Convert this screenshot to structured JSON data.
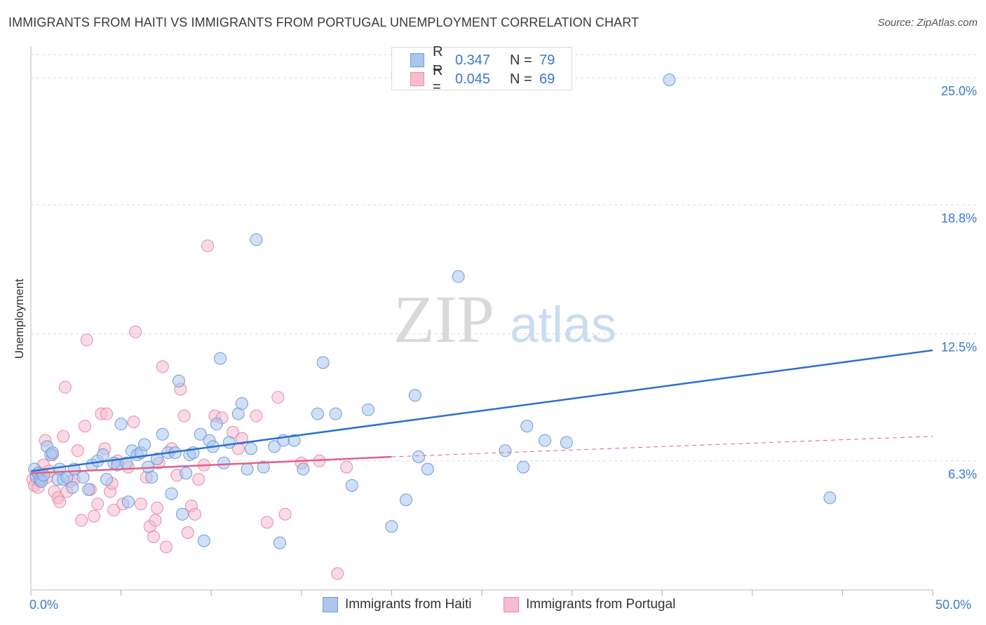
{
  "title": "IMMIGRANTS FROM HAITI VS IMMIGRANTS FROM PORTUGAL UNEMPLOYMENT CORRELATION CHART",
  "source": "Source: ZipAtlas.com",
  "watermark": {
    "zip": "ZIP",
    "atlas": "atlas"
  },
  "legend_top": [
    {
      "r_label": "R =",
      "r_value": "0.347",
      "n_label": "N =",
      "n_value": "79"
    },
    {
      "r_label": "R =",
      "r_value": "0.045",
      "n_label": "N =",
      "n_value": "69"
    }
  ],
  "legend_bottom": [
    "Immigrants from Haiti",
    "Immigrants from Portugal"
  ],
  "colors": {
    "haiti_fill": "#aac6ee",
    "haiti_stroke": "#6f9ad8",
    "haiti_line": "#2a6fd0",
    "portugal_fill": "#f6bcd0",
    "portugal_stroke": "#e88aaa",
    "portugal_line": "#e0608a",
    "axis_text": "#3a78d0",
    "grid": "#dcdcdc"
  },
  "chart_data": {
    "type": "scatter",
    "title": "IMMIGRANTS FROM HAITI VS IMMIGRANTS FROM PORTUGAL UNEMPLOYMENT CORRELATION CHART",
    "xlabel": "",
    "ylabel": "Unemployment",
    "xlim": [
      0,
      50
    ],
    "ylim": [
      0,
      26.2
    ],
    "x_tick_labels": [
      "0.0%",
      "50.0%"
    ],
    "y_ticks": [
      6.3,
      12.5,
      18.8,
      25.0
    ],
    "y_tick_labels": [
      "6.3%",
      "12.5%",
      "18.8%",
      "25.0%"
    ],
    "grid": true,
    "series": [
      {
        "name": "Immigrants from Haiti",
        "r": 0.347,
        "n": 79,
        "trend": {
          "x": [
            0,
            50
          ],
          "y": [
            5.8,
            11.7
          ],
          "style": "solid"
        },
        "points": [
          [
            0.2,
            5.9
          ],
          [
            0.3,
            5.5
          ],
          [
            0.4,
            5.7
          ],
          [
            0.5,
            5.4
          ],
          [
            0.6,
            5.3
          ],
          [
            0.7,
            5.6
          ],
          [
            0.9,
            7.0
          ],
          [
            1.1,
            6.6
          ],
          [
            1.2,
            6.7
          ],
          [
            1.5,
            5.4
          ],
          [
            1.6,
            5.9
          ],
          [
            1.8,
            5.4
          ],
          [
            2.0,
            5.5
          ],
          [
            2.3,
            5.0
          ],
          [
            2.4,
            5.9
          ],
          [
            2.9,
            5.5
          ],
          [
            3.2,
            4.9
          ],
          [
            3.4,
            6.1
          ],
          [
            3.7,
            6.3
          ],
          [
            4.0,
            6.6
          ],
          [
            4.2,
            5.4
          ],
          [
            4.6,
            6.2
          ],
          [
            4.8,
            6.1
          ],
          [
            5.0,
            8.1
          ],
          [
            5.3,
            6.2
          ],
          [
            5.4,
            4.3
          ],
          [
            5.6,
            6.8
          ],
          [
            5.9,
            6.6
          ],
          [
            6.1,
            6.7
          ],
          [
            6.3,
            7.1
          ],
          [
            6.5,
            6.0
          ],
          [
            6.7,
            5.5
          ],
          [
            7.0,
            6.4
          ],
          [
            7.3,
            7.6
          ],
          [
            7.6,
            6.7
          ],
          [
            7.8,
            4.7
          ],
          [
            8.0,
            6.7
          ],
          [
            8.2,
            10.2
          ],
          [
            8.4,
            3.7
          ],
          [
            8.6,
            5.7
          ],
          [
            8.8,
            6.6
          ],
          [
            9.0,
            6.7
          ],
          [
            9.4,
            7.6
          ],
          [
            9.6,
            2.4
          ],
          [
            9.9,
            7.3
          ],
          [
            10.1,
            7.0
          ],
          [
            10.3,
            8.1
          ],
          [
            10.5,
            11.3
          ],
          [
            10.7,
            6.2
          ],
          [
            11.0,
            7.2
          ],
          [
            11.5,
            8.6
          ],
          [
            11.7,
            9.1
          ],
          [
            12.0,
            5.9
          ],
          [
            12.2,
            6.9
          ],
          [
            12.5,
            17.1
          ],
          [
            12.9,
            6.0
          ],
          [
            13.5,
            7.0
          ],
          [
            13.8,
            2.3
          ],
          [
            14.0,
            7.3
          ],
          [
            14.6,
            7.3
          ],
          [
            15.1,
            5.9
          ],
          [
            15.9,
            8.6
          ],
          [
            16.2,
            11.1
          ],
          [
            16.9,
            8.6
          ],
          [
            17.8,
            5.1
          ],
          [
            18.7,
            8.8
          ],
          [
            20.0,
            3.1
          ],
          [
            20.8,
            4.4
          ],
          [
            21.3,
            9.5
          ],
          [
            21.5,
            6.5
          ],
          [
            22.0,
            5.9
          ],
          [
            23.7,
            15.3
          ],
          [
            26.3,
            6.8
          ],
          [
            27.3,
            6.0
          ],
          [
            27.5,
            8.0
          ],
          [
            28.5,
            7.3
          ],
          [
            29.7,
            7.2
          ],
          [
            35.4,
            24.9
          ],
          [
            44.3,
            4.5
          ]
        ]
      },
      {
        "name": "Immigrants from Portugal",
        "r": 0.045,
        "n": 69,
        "trend": {
          "x": [
            0,
            20
          ],
          "y": [
            5.7,
            6.5
          ],
          "style": "solid"
        },
        "trend_extension": {
          "x": [
            20,
            50
          ],
          "y": [
            6.5,
            7.5
          ],
          "style": "dashed"
        },
        "points": [
          [
            0.1,
            5.4
          ],
          [
            0.2,
            5.1
          ],
          [
            0.3,
            5.6
          ],
          [
            0.4,
            5.0
          ],
          [
            0.5,
            5.3
          ],
          [
            0.6,
            5.7
          ],
          [
            0.7,
            6.1
          ],
          [
            0.8,
            7.3
          ],
          [
            0.9,
            5.5
          ],
          [
            1.0,
            5.8
          ],
          [
            1.2,
            6.6
          ],
          [
            1.3,
            4.8
          ],
          [
            1.5,
            4.5
          ],
          [
            1.6,
            4.3
          ],
          [
            1.8,
            7.5
          ],
          [
            1.9,
            9.9
          ],
          [
            2.0,
            4.8
          ],
          [
            2.2,
            5.3
          ],
          [
            2.4,
            5.4
          ],
          [
            2.6,
            6.8
          ],
          [
            2.8,
            3.4
          ],
          [
            3.0,
            8.0
          ],
          [
            3.1,
            12.2
          ],
          [
            3.3,
            4.9
          ],
          [
            3.5,
            3.6
          ],
          [
            3.7,
            4.2
          ],
          [
            3.9,
            8.6
          ],
          [
            4.1,
            6.9
          ],
          [
            4.2,
            8.6
          ],
          [
            4.4,
            4.8
          ],
          [
            4.5,
            5.2
          ],
          [
            4.6,
            3.9
          ],
          [
            4.8,
            6.3
          ],
          [
            5.1,
            4.2
          ],
          [
            5.4,
            6.0
          ],
          [
            5.7,
            8.2
          ],
          [
            5.8,
            12.6
          ],
          [
            6.1,
            4.2
          ],
          [
            6.4,
            5.5
          ],
          [
            6.6,
            3.1
          ],
          [
            6.8,
            2.6
          ],
          [
            6.9,
            3.4
          ],
          [
            7.0,
            4.0
          ],
          [
            7.1,
            6.2
          ],
          [
            7.3,
            10.9
          ],
          [
            7.5,
            2.1
          ],
          [
            7.8,
            6.9
          ],
          [
            8.1,
            5.6
          ],
          [
            8.3,
            9.8
          ],
          [
            8.5,
            8.5
          ],
          [
            8.7,
            2.8
          ],
          [
            8.9,
            4.1
          ],
          [
            9.1,
            3.7
          ],
          [
            9.3,
            5.4
          ],
          [
            9.6,
            6.1
          ],
          [
            9.8,
            16.8
          ],
          [
            10.2,
            8.5
          ],
          [
            10.6,
            8.4
          ],
          [
            11.2,
            7.7
          ],
          [
            11.5,
            6.9
          ],
          [
            11.7,
            7.4
          ],
          [
            12.5,
            8.5
          ],
          [
            13.1,
            3.3
          ],
          [
            13.7,
            9.4
          ],
          [
            14.1,
            3.7
          ],
          [
            15.0,
            6.2
          ],
          [
            16.0,
            6.3
          ],
          [
            17.0,
            0.8
          ],
          [
            17.5,
            6.0
          ]
        ]
      }
    ]
  }
}
